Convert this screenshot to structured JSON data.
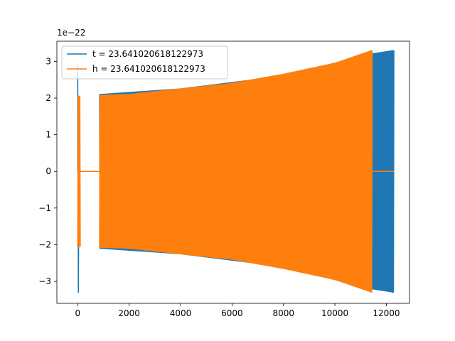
{
  "chart_data": {
    "type": "line",
    "title": "",
    "xlabel": "",
    "ylabel": "",
    "y_offset_text": "1e−22",
    "xlim": [
      -810,
      12900
    ],
    "ylim": [
      -3.6,
      3.55
    ],
    "y_scale_note": "values in units of 1e-22",
    "xticks": [
      0,
      2000,
      4000,
      6000,
      8000,
      10000,
      12000
    ],
    "xtick_labels": [
      "0",
      "2000",
      "4000",
      "6000",
      "8000",
      "10000",
      "12000"
    ],
    "yticks": [
      -3,
      -2,
      -1,
      0,
      1,
      2,
      3
    ],
    "ytick_labels": [
      "−3",
      "−2",
      "−1",
      "0",
      "1",
      "2",
      "3"
    ],
    "grid": false,
    "legend_position": "upper-left",
    "series": [
      {
        "name": "t = 23.641020618122973",
        "color": "#1f77b4",
        "x_end": 12300,
        "start_spike": {
          "x": 0,
          "max": 2.9,
          "min": -3.3
        },
        "amplitude_envelope": [
          {
            "x": 900,
            "amp": 2.1
          },
          {
            "x": 4000,
            "amp": 2.25
          },
          {
            "x": 8000,
            "amp": 2.6
          },
          {
            "x": 11400,
            "amp": 3.2
          },
          {
            "x": 12300,
            "amp": 3.3
          }
        ]
      },
      {
        "name": "h = 23.641020618122973",
        "color": "#ff7f0e",
        "x_start": 0,
        "flat_segment": {
          "from": 100,
          "to": 850,
          "value": 0
        },
        "x_end": 11450,
        "tail_flat": {
          "from": 11450,
          "to": 12300,
          "value": 0
        },
        "amplitude_envelope": [
          {
            "x": 0,
            "amp": 2.05
          },
          {
            "x": 2000,
            "amp": 2.1
          },
          {
            "x": 4000,
            "amp": 2.25
          },
          {
            "x": 6000,
            "amp": 2.4
          },
          {
            "x": 8000,
            "amp": 2.65
          },
          {
            "x": 10000,
            "amp": 2.95
          },
          {
            "x": 11450,
            "amp": 3.3
          }
        ]
      }
    ]
  }
}
